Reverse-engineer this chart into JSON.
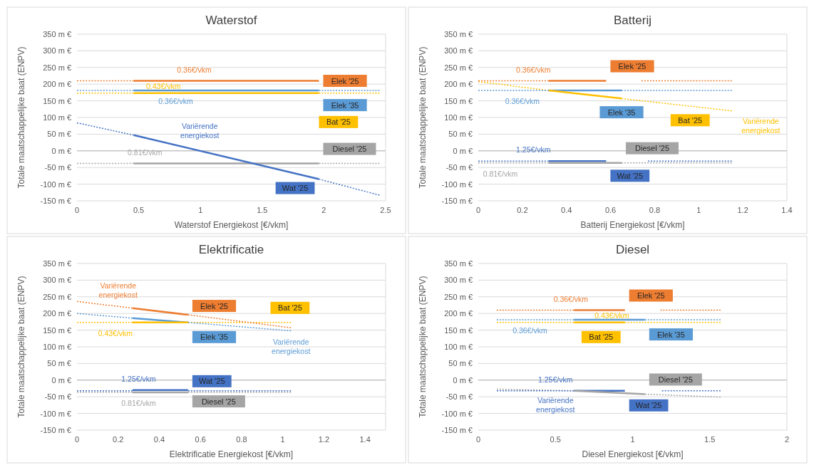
{
  "chart_data": [
    {
      "type": "line",
      "title": "Waterstof",
      "xlabel": "Waterstof Energiekost [€/vkm]",
      "ylabel": "Totale maatschappelijke baat (ENPV)",
      "xlim": [
        0,
        2.5
      ],
      "xticks": [
        0,
        0.5,
        1,
        1.5,
        2,
        2.5
      ],
      "ylim": [
        -150,
        350
      ],
      "yticks": [
        {
          "value": -150,
          "label": "-150 m €"
        },
        {
          "value": -100,
          "label": "-100 m €"
        },
        {
          "value": -50,
          "label": "-50 m €"
        },
        {
          "value": 0,
          "label": "0 m €"
        },
        {
          "value": 50,
          "label": "50 m €"
        },
        {
          "value": 100,
          "label": "100 m €"
        },
        {
          "value": 150,
          "label": "150 m €"
        },
        {
          "value": 200,
          "label": "200 m €"
        },
        {
          "value": 250,
          "label": "250 m €"
        },
        {
          "value": 300,
          "label": "300 m €"
        },
        {
          "value": 350,
          "label": "350 m €"
        }
      ],
      "grid": "y",
      "series": [
        {
          "name": "Elek '25",
          "color": "#ed7d31",
          "x": [
            0.46,
            1.96
          ],
          "values": [
            210,
            210
          ]
        },
        {
          "color": "#ed7d31",
          "line_style": "dotted",
          "x": [
            0,
            0.46
          ],
          "values": [
            210,
            210
          ]
        },
        {
          "name": "Elek '35",
          "color": "#5b9bd5",
          "x": [
            0.46,
            1.96
          ],
          "values": [
            181,
            181
          ]
        },
        {
          "color": "#5b9bd5",
          "line_style": "dotted",
          "x": [
            0,
            0.46
          ],
          "values": [
            181,
            181
          ]
        },
        {
          "color": "#5b9bd5",
          "line_style": "dotted",
          "x": [
            1.96,
            2.45
          ],
          "values": [
            181,
            181
          ]
        },
        {
          "name": "Bat '25",
          "color": "#ffc000",
          "x": [
            0.46,
            1.96
          ],
          "values": [
            173,
            173
          ]
        },
        {
          "color": "#ffc000",
          "line_style": "dotted",
          "x": [
            0,
            0.46
          ],
          "values": [
            173,
            173
          ]
        },
        {
          "color": "#ffc000",
          "line_style": "dotted",
          "x": [
            1.96,
            2.45
          ],
          "values": [
            173,
            173
          ]
        },
        {
          "name": "Diesel '25",
          "color": "#a5a5a5",
          "x": [
            0.46,
            1.96
          ],
          "values": [
            -38,
            -38
          ]
        },
        {
          "color": "#a5a5a5",
          "line_style": "dotted",
          "x": [
            0,
            0.46
          ],
          "values": [
            -38,
            -38
          ]
        },
        {
          "color": "#a5a5a5",
          "line_style": "dotted",
          "x": [
            1.96,
            2.45
          ],
          "values": [
            -38,
            -38
          ]
        },
        {
          "name": "Wat '25",
          "color": "#4472c4",
          "x": [
            0.46,
            1.96
          ],
          "values": [
            47,
            -85
          ]
        },
        {
          "color": "#4472c4",
          "line_style": "dotted",
          "x": [
            0,
            0.46
          ],
          "values": [
            84,
            47
          ]
        },
        {
          "color": "#4472c4",
          "line_style": "dotted",
          "x": [
            1.96,
            2.45
          ],
          "values": [
            -85,
            -133
          ]
        }
      ],
      "annotations": [
        {
          "text": "0.36€/vkm",
          "x": 0.95,
          "y": 210
        },
        {
          "text": "0.36€/vkm",
          "x": 0.8,
          "y": 181
        },
        {
          "text": "0.43€/vkm",
          "x": 0.7,
          "y": 173
        },
        {
          "text": "0.81€/vkm",
          "x": 0.55,
          "y": -38
        },
        {
          "text": "Variërende energiekost",
          "x": 0.85,
          "y": 13
        }
      ]
    },
    {
      "type": "line",
      "title": "Batterij",
      "xlabel": "Batterij  Energiekost [€/vkm]",
      "ylabel": "Totale maatschappelijke baat (ENPV)",
      "xlim": [
        0,
        1.4
      ],
      "xticks": [
        0,
        0.2,
        0.4,
        0.6,
        0.8,
        1,
        1.2,
        1.4
      ],
      "ylim": [
        -150,
        350
      ],
      "yticks": [
        {
          "value": -150,
          "label": "-150 m €"
        },
        {
          "value": -100,
          "label": "-100 m €"
        },
        {
          "value": -50,
          "label": "-50 m €"
        },
        {
          "value": 0,
          "label": "0 m €"
        },
        {
          "value": 50,
          "label": "50 m €"
        },
        {
          "value": 100,
          "label": "100 m €"
        },
        {
          "value": 150,
          "label": "150 m €"
        },
        {
          "value": 200,
          "label": "200 m €"
        },
        {
          "value": 250,
          "label": "250 m €"
        },
        {
          "value": 300,
          "label": "300 m €"
        },
        {
          "value": 350,
          "label": "350 m €"
        }
      ],
      "grid": "y",
      "series": [
        {
          "name": "Elek '25",
          "color": "#ed7d31",
          "x": [
            0.32,
            0.58
          ],
          "values": [
            210,
            210
          ]
        },
        {
          "color": "#ed7d31",
          "line_style": "dotted",
          "x": [
            0,
            0.32
          ],
          "values": [
            210,
            210
          ]
        },
        {
          "color": "#ed7d31",
          "line_style": "dotted",
          "x": [
            0.74,
            1.15
          ],
          "values": [
            210,
            210
          ]
        },
        {
          "name": "Elek '35",
          "color": "#5b9bd5",
          "x": [
            0.32,
            0.65
          ],
          "values": [
            181,
            181
          ]
        },
        {
          "color": "#5b9bd5",
          "line_style": "dotted",
          "x": [
            0,
            0.32
          ],
          "values": [
            181,
            181
          ]
        },
        {
          "color": "#5b9bd5",
          "line_style": "dotted",
          "x": [
            0.65,
            1.15
          ],
          "values": [
            181,
            181
          ]
        },
        {
          "name": "Bat '25",
          "color": "#ffc000",
          "x": [
            0.32,
            0.65
          ],
          "values": [
            181,
            157
          ]
        },
        {
          "color": "#ffc000",
          "line_style": "dotted",
          "x": [
            0,
            0.32
          ],
          "values": [
            208,
            181
          ]
        },
        {
          "color": "#ffc000",
          "line_style": "dotted",
          "x": [
            0.65,
            1.15
          ],
          "values": [
            157,
            120
          ]
        },
        {
          "name": "Wat '25",
          "color": "#4472c4",
          "x": [
            0.32,
            0.58
          ],
          "values": [
            -31,
            -31
          ]
        },
        {
          "color": "#4472c4",
          "line_style": "dotted",
          "x": [
            0,
            0.32
          ],
          "values": [
            -31,
            -31
          ]
        },
        {
          "color": "#4472c4",
          "line_style": "dotted",
          "x": [
            0.77,
            1.15
          ],
          "values": [
            -31,
            -31
          ]
        },
        {
          "name": "Diesel '25",
          "color": "#a5a5a5",
          "x": [
            0.32,
            0.65
          ],
          "values": [
            -36,
            -36
          ]
        },
        {
          "color": "#a5a5a5",
          "line_style": "dotted",
          "x": [
            0,
            0.32
          ],
          "values": [
            -36,
            -36
          ]
        },
        {
          "color": "#a5a5a5",
          "line_style": "dotted",
          "x": [
            0.65,
            1.15
          ],
          "values": [
            -36,
            -36
          ]
        }
      ],
      "annotations": [
        {
          "text": "0.36€/vkm",
          "x": 0.25,
          "y": 210
        },
        {
          "text": "0.36€/vkm",
          "x": 0.2,
          "y": 181
        },
        {
          "text": "Variërende energiekost",
          "x": 1.12,
          "y": 122
        },
        {
          "text": "1.25€/vkm",
          "x": 0.25,
          "y": -31
        },
        {
          "text": "0.81€/vkm",
          "x": 0.1,
          "y": -36
        }
      ]
    },
    {
      "type": "line",
      "title": "Elektrificatie",
      "xlabel": "Elektrificatie Energiekost [€/vkm]",
      "ylabel": "Totale maatschappelijke baat (ENPV)",
      "xlim": [
        0,
        1.5
      ],
      "xticks": [
        0,
        0.2,
        0.4,
        0.6,
        0.8,
        1,
        1.2,
        1.4
      ],
      "ylim": [
        -150,
        350
      ],
      "yticks": [
        {
          "value": -150,
          "label": "-150 m €"
        },
        {
          "value": -100,
          "label": "-100 m €"
        },
        {
          "value": -50,
          "label": "-50 m €"
        },
        {
          "value": 0,
          "label": "0 m €"
        },
        {
          "value": 50,
          "label": "50 m €"
        },
        {
          "value": 100,
          "label": "100 m €"
        },
        {
          "value": 150,
          "label": "150 m €"
        },
        {
          "value": 200,
          "label": "200 m €"
        },
        {
          "value": 250,
          "label": "250 m €"
        },
        {
          "value": 300,
          "label": "300 m €"
        },
        {
          "value": 350,
          "label": "350 m €"
        }
      ],
      "grid": "y",
      "series": [
        {
          "name": "Elek '25",
          "color": "#ed7d31",
          "x": [
            0.27,
            0.54
          ],
          "values": [
            216,
            196
          ]
        },
        {
          "color": "#ed7d31",
          "line_style": "dotted",
          "x": [
            0,
            0.27
          ],
          "values": [
            236,
            216
          ]
        },
        {
          "color": "#ed7d31",
          "line_style": "dotted",
          "x": [
            0.54,
            1.04
          ],
          "values": [
            196,
            157
          ]
        },
        {
          "name": "Elek '35",
          "color": "#5b9bd5",
          "x": [
            0.27,
            0.54
          ],
          "values": [
            186,
            173
          ]
        },
        {
          "color": "#5b9bd5",
          "line_style": "dotted",
          "x": [
            0,
            0.27
          ],
          "values": [
            200,
            186
          ]
        },
        {
          "color": "#5b9bd5",
          "line_style": "dotted",
          "x": [
            0.54,
            1.04
          ],
          "values": [
            173,
            148
          ]
        },
        {
          "name": "Bat '25",
          "color": "#ffc000",
          "x": [
            0.27,
            0.54
          ],
          "values": [
            173,
            173
          ]
        },
        {
          "color": "#ffc000",
          "line_style": "dotted",
          "x": [
            0,
            0.27
          ],
          "values": [
            173,
            173
          ]
        },
        {
          "color": "#ffc000",
          "line_style": "dotted",
          "x": [
            0.54,
            1.04
          ],
          "values": [
            173,
            173
          ]
        },
        {
          "name": "Wat '25",
          "color": "#4472c4",
          "x": [
            0.27,
            0.54
          ],
          "values": [
            -30,
            -30
          ]
        },
        {
          "color": "#4472c4",
          "line_style": "dotted",
          "x": [
            0,
            0.27
          ],
          "values": [
            -32,
            -32
          ]
        },
        {
          "color": "#4472c4",
          "line_style": "dotted",
          "x": [
            0.54,
            1.04
          ],
          "values": [
            -32,
            -32
          ]
        },
        {
          "name": "Diesel '25",
          "color": "#a5a5a5",
          "x": [
            0.27,
            0.54
          ],
          "values": [
            -37,
            -37
          ]
        },
        {
          "color": "#a5a5a5",
          "line_style": "dotted",
          "x": [
            0,
            0.27
          ],
          "values": [
            -36,
            -36
          ]
        },
        {
          "color": "#a5a5a5",
          "line_style": "dotted",
          "x": [
            0.54,
            1.04
          ],
          "values": [
            -36,
            -36
          ]
        }
      ],
      "annotations": [
        {
          "text": "Variërende energiekost",
          "x": 0.2,
          "y": 221
        },
        {
          "text": "Variërende energiekost",
          "x": 1.04,
          "y": 148
        },
        {
          "text": "0.43€/vkm",
          "x": 0.1,
          "y": 173
        },
        {
          "text": "1.25€/vkm",
          "x": 0.3,
          "y": -30
        },
        {
          "text": "0.81€/vkm",
          "x": 0.3,
          "y": -37
        }
      ]
    },
    {
      "type": "line",
      "title": "Diesel",
      "xlabel": "Diesel Energiekost [€/vkm]",
      "ylabel": "Totale maatschappelijke baat (ENPV)",
      "xlim": [
        0,
        2
      ],
      "xticks": [
        0,
        0.5,
        1,
        1.5,
        2
      ],
      "ylim": [
        -150,
        350
      ],
      "yticks": [
        {
          "value": -150,
          "label": "-150 m €"
        },
        {
          "value": -100,
          "label": "-100 m €"
        },
        {
          "value": -50,
          "label": "-50 m €"
        },
        {
          "value": 0,
          "label": "0 m €"
        },
        {
          "value": 50,
          "label": "50 m €"
        },
        {
          "value": 100,
          "label": "100 m €"
        },
        {
          "value": 150,
          "label": "150 m €"
        },
        {
          "value": 200,
          "label": "200 m €"
        },
        {
          "value": 250,
          "label": "250 m €"
        },
        {
          "value": 300,
          "label": "300 m €"
        },
        {
          "value": 350,
          "label": "350 m €"
        }
      ],
      "grid": "y",
      "series": [
        {
          "name": "Elek '25",
          "color": "#ed7d31",
          "x": [
            0.62,
            0.95
          ],
          "values": [
            210,
            210
          ]
        },
        {
          "color": "#ed7d31",
          "line_style": "dotted",
          "x": [
            0.12,
            0.62
          ],
          "values": [
            210,
            210
          ]
        },
        {
          "color": "#ed7d31",
          "line_style": "dotted",
          "x": [
            1.18,
            1.57
          ],
          "values": [
            210,
            210
          ]
        },
        {
          "name": "Elek '35",
          "color": "#5b9bd5",
          "x": [
            0.62,
            1.08
          ],
          "values": [
            181,
            181
          ]
        },
        {
          "color": "#5b9bd5",
          "line_style": "dotted",
          "x": [
            0.12,
            0.62
          ],
          "values": [
            181,
            181
          ]
        },
        {
          "color": "#5b9bd5",
          "line_style": "dotted",
          "x": [
            1.08,
            1.57
          ],
          "values": [
            181,
            181
          ]
        },
        {
          "name": "Bat '25",
          "color": "#ffc000",
          "x": [
            0.62,
            0.95
          ],
          "values": [
            173,
            173
          ]
        },
        {
          "color": "#ffc000",
          "line_style": "dotted",
          "x": [
            0.12,
            0.62
          ],
          "values": [
            173,
            173
          ]
        },
        {
          "color": "#ffc000",
          "line_style": "dotted",
          "x": [
            0.95,
            1.57
          ],
          "values": [
            173,
            173
          ]
        },
        {
          "name": "Wat '25",
          "color": "#4472c4",
          "x": [
            0.62,
            0.95
          ],
          "values": [
            -32,
            -32
          ]
        },
        {
          "color": "#4472c4",
          "line_style": "dotted",
          "x": [
            0.12,
            0.62
          ],
          "values": [
            -32,
            -32
          ]
        },
        {
          "color": "#4472c4",
          "line_style": "dotted",
          "x": [
            1.19,
            1.57
          ],
          "values": [
            -32,
            -32
          ]
        },
        {
          "name": "Diesel '25",
          "color": "#a5a5a5",
          "x": [
            0.62,
            1.08
          ],
          "values": [
            -32,
            -42
          ]
        },
        {
          "color": "#a5a5a5",
          "line_style": "dotted",
          "x": [
            0.12,
            0.62
          ],
          "values": [
            -27,
            -32
          ]
        },
        {
          "color": "#a5a5a5",
          "line_style": "dotted",
          "x": [
            1.08,
            1.57
          ],
          "values": [
            -42,
            -51
          ]
        }
      ],
      "annotations": [
        {
          "text": "0.36€/vkm",
          "x": 0.6,
          "y": 210
        },
        {
          "text": "0.36€/vkm",
          "x": 0.45,
          "y": 181
        },
        {
          "text": "0.43€/vkm",
          "x": 0.75,
          "y": 173
        },
        {
          "text": "1.25€/vkm",
          "x": 0.5,
          "y": -32
        },
        {
          "text": "Variërende energiekost",
          "x": 0.5,
          "y": -29
        }
      ]
    }
  ]
}
